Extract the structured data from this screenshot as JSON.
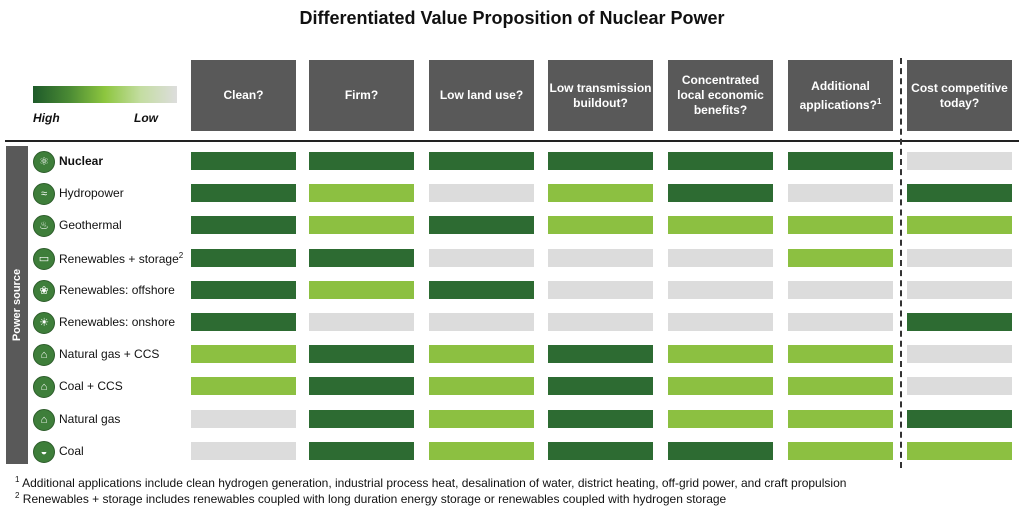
{
  "title": "Differentiated Value Proposition of Nuclear Power",
  "legend": {
    "high": "High",
    "low": "Low"
  },
  "side_label": "Power source",
  "colors": {
    "high": "#2d6b32",
    "medium": "#8cc041",
    "low": "#dcdcdc",
    "header": "#595959"
  },
  "chart_data": {
    "type": "table",
    "columns": [
      {
        "label": "Clean?",
        "sup": ""
      },
      {
        "label": "Firm?",
        "sup": ""
      },
      {
        "label": "Low land use?",
        "sup": ""
      },
      {
        "label": "Low transmission buildout?",
        "sup": ""
      },
      {
        "label": "Concentrated local economic benefits?",
        "sup": ""
      },
      {
        "label": "Additional applications?",
        "sup": "1"
      },
      {
        "label": "Cost competitive today?",
        "sup": ""
      }
    ],
    "rows": [
      {
        "label": "Nuclear",
        "sup": "",
        "bold": true,
        "icon": "atom-icon",
        "values": [
          "high",
          "high",
          "high",
          "high",
          "high",
          "high",
          "low"
        ]
      },
      {
        "label": "Hydropower",
        "sup": "",
        "bold": false,
        "icon": "water-waves-icon",
        "values": [
          "high",
          "medium",
          "low",
          "medium",
          "high",
          "low",
          "high"
        ]
      },
      {
        "label": "Geothermal",
        "sup": "",
        "bold": false,
        "icon": "geothermal-icon",
        "values": [
          "high",
          "medium",
          "high",
          "medium",
          "medium",
          "medium",
          "medium"
        ]
      },
      {
        "label": "Renewables + storage",
        "sup": "2",
        "bold": false,
        "icon": "battery-icon",
        "values": [
          "high",
          "high",
          "low",
          "low",
          "low",
          "medium",
          "low"
        ]
      },
      {
        "label": "Renewables: offshore",
        "sup": "",
        "bold": false,
        "icon": "wind-turbine-icon",
        "values": [
          "high",
          "medium",
          "high",
          "low",
          "low",
          "low",
          "low"
        ]
      },
      {
        "label": "Renewables: onshore",
        "sup": "",
        "bold": false,
        "icon": "wind-sun-icon",
        "values": [
          "high",
          "low",
          "low",
          "low",
          "low",
          "low",
          "high"
        ]
      },
      {
        "label": "Natural gas + CCS",
        "sup": "",
        "bold": false,
        "icon": "gas-plant-icon",
        "values": [
          "medium",
          "high",
          "medium",
          "high",
          "medium",
          "medium",
          "low"
        ]
      },
      {
        "label": "Coal + CCS",
        "sup": "",
        "bold": false,
        "icon": "coal-plant-icon",
        "values": [
          "medium",
          "high",
          "medium",
          "high",
          "medium",
          "medium",
          "low"
        ]
      },
      {
        "label": "Natural gas",
        "sup": "",
        "bold": false,
        "icon": "gas-factory-icon",
        "values": [
          "low",
          "high",
          "medium",
          "high",
          "medium",
          "medium",
          "high"
        ]
      },
      {
        "label": "Coal",
        "sup": "",
        "bold": false,
        "icon": "coal-cart-icon",
        "values": [
          "low",
          "high",
          "medium",
          "high",
          "high",
          "medium",
          "medium"
        ]
      }
    ]
  },
  "footnotes": [
    {
      "sup": "1",
      "text": " Additional applications include clean hydrogen generation, industrial process heat, desalination of water, district heating, off-grid power, and craft propulsion"
    },
    {
      "sup": "2",
      "text": " Renewables + storage includes renewables coupled with long duration energy storage or renewables coupled with hydrogen storage"
    }
  ]
}
